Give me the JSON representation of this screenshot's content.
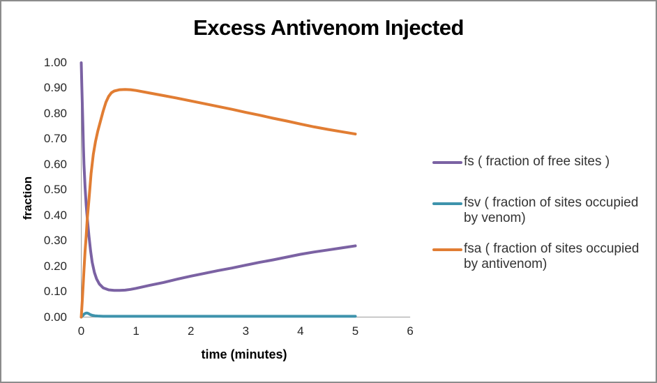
{
  "title": "Excess Antivenom Injected",
  "y_axis": {
    "label": "fraction"
  },
  "x_axis": {
    "label": "time (minutes)"
  },
  "legend": {
    "items": [
      {
        "id": "fs",
        "label": "fs ( fraction of free sites )",
        "color": "#7B62A3"
      },
      {
        "id": "fsv",
        "label": "fsv ( fraction of sites occupied by venom)",
        "color": "#3E93AC"
      },
      {
        "id": "fsa",
        "label": "fsa ( fraction of sites occupied by antivenom)",
        "color": "#E17D33"
      }
    ]
  },
  "chart_data": {
    "type": "line",
    "title": "Excess Antivenom Injected",
    "xlabel": "time (minutes)",
    "ylabel": "fraction",
    "xlim": [
      0,
      6
    ],
    "ylim": [
      0,
      1
    ],
    "grid": false,
    "legend_position": "right",
    "x_ticks": [
      "0",
      "1",
      "2",
      "3",
      "4",
      "5",
      "6"
    ],
    "y_ticks": [
      "0.00",
      "0.10",
      "0.20",
      "0.30",
      "0.40",
      "0.50",
      "0.60",
      "0.70",
      "0.80",
      "0.90",
      "1.00"
    ],
    "axis_color": "#9C9C9C",
    "series": [
      {
        "id": "fs",
        "name": "fs ( fraction of free sites )",
        "color": "#7B62A3",
        "points": [
          [
            0,
            1.0
          ],
          [
            0.01,
            0.91
          ],
          [
            0.02,
            0.83
          ],
          [
            0.03,
            0.75
          ],
          [
            0.04,
            0.67
          ],
          [
            0.05,
            0.6
          ],
          [
            0.07,
            0.51
          ],
          [
            0.09,
            0.44
          ],
          [
            0.11,
            0.39
          ],
          [
            0.14,
            0.32
          ],
          [
            0.17,
            0.26
          ],
          [
            0.2,
            0.215
          ],
          [
            0.24,
            0.175
          ],
          [
            0.28,
            0.15
          ],
          [
            0.33,
            0.13
          ],
          [
            0.4,
            0.115
          ],
          [
            0.5,
            0.107
          ],
          [
            0.6,
            0.105
          ],
          [
            0.7,
            0.105
          ],
          [
            0.8,
            0.106
          ],
          [
            0.9,
            0.109
          ],
          [
            1.0,
            0.113
          ],
          [
            1.25,
            0.125
          ],
          [
            1.5,
            0.136
          ],
          [
            1.75,
            0.149
          ],
          [
            2.0,
            0.161
          ],
          [
            2.25,
            0.172
          ],
          [
            2.5,
            0.183
          ],
          [
            2.75,
            0.193
          ],
          [
            3.0,
            0.204
          ],
          [
            3.25,
            0.215
          ],
          [
            3.5,
            0.225
          ],
          [
            3.75,
            0.236
          ],
          [
            4.0,
            0.247
          ],
          [
            4.25,
            0.256
          ],
          [
            4.5,
            0.264
          ],
          [
            4.75,
            0.272
          ],
          [
            5.0,
            0.28
          ]
        ]
      },
      {
        "id": "fsv",
        "name": "fsv ( fraction of sites occupied by venom)",
        "color": "#3E93AC",
        "points": [
          [
            0,
            0.0
          ],
          [
            0.02,
            0.004
          ],
          [
            0.04,
            0.009
          ],
          [
            0.06,
            0.013
          ],
          [
            0.08,
            0.015
          ],
          [
            0.1,
            0.016
          ],
          [
            0.12,
            0.015
          ],
          [
            0.14,
            0.013
          ],
          [
            0.17,
            0.009
          ],
          [
            0.2,
            0.007
          ],
          [
            0.25,
            0.005
          ],
          [
            0.3,
            0.004
          ],
          [
            0.4,
            0.003
          ],
          [
            0.6,
            0.003
          ],
          [
            1.0,
            0.003
          ],
          [
            2.0,
            0.003
          ],
          [
            3.0,
            0.003
          ],
          [
            4.0,
            0.003
          ],
          [
            5.0,
            0.003
          ]
        ]
      },
      {
        "id": "fsa",
        "name": "fsa ( fraction of sites occupied by antivenom)",
        "color": "#E17D33",
        "points": [
          [
            0,
            0.0
          ],
          [
            0.01,
            0.035
          ],
          [
            0.02,
            0.07
          ],
          [
            0.03,
            0.11
          ],
          [
            0.05,
            0.185
          ],
          [
            0.07,
            0.26
          ],
          [
            0.09,
            0.32
          ],
          [
            0.11,
            0.385
          ],
          [
            0.14,
            0.46
          ],
          [
            0.18,
            0.565
          ],
          [
            0.22,
            0.64
          ],
          [
            0.26,
            0.69
          ],
          [
            0.3,
            0.73
          ],
          [
            0.35,
            0.77
          ],
          [
            0.4,
            0.81
          ],
          [
            0.45,
            0.845
          ],
          [
            0.5,
            0.868
          ],
          [
            0.55,
            0.882
          ],
          [
            0.6,
            0.889
          ],
          [
            0.7,
            0.894
          ],
          [
            0.8,
            0.895
          ],
          [
            0.9,
            0.894
          ],
          [
            1.0,
            0.891
          ],
          [
            1.25,
            0.881
          ],
          [
            1.5,
            0.871
          ],
          [
            1.75,
            0.861
          ],
          [
            2.0,
            0.85
          ],
          [
            2.25,
            0.839
          ],
          [
            2.5,
            0.828
          ],
          [
            2.75,
            0.817
          ],
          [
            3.0,
            0.805
          ],
          [
            3.25,
            0.794
          ],
          [
            3.5,
            0.782
          ],
          [
            3.75,
            0.771
          ],
          [
            4.0,
            0.759
          ],
          [
            4.25,
            0.748
          ],
          [
            4.5,
            0.738
          ],
          [
            4.75,
            0.729
          ],
          [
            5.0,
            0.72
          ]
        ]
      }
    ]
  }
}
